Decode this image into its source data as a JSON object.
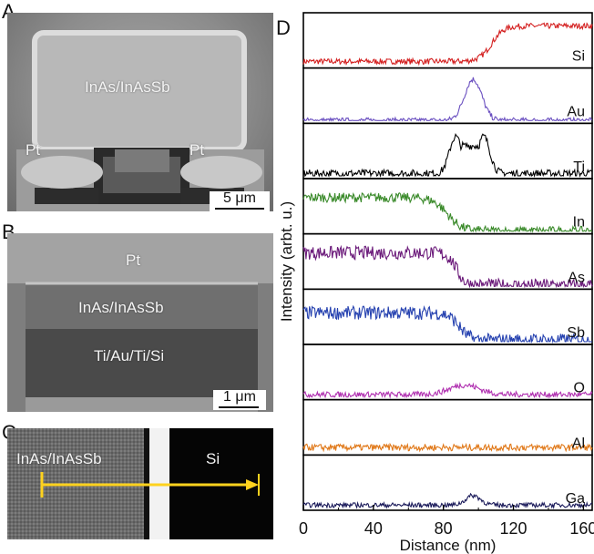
{
  "panels": {
    "a": {
      "letter": "A",
      "labels": {
        "top": "InAs/InAsSb",
        "pt_left": "Pt",
        "pt_right": "Pt"
      },
      "scalebar": "5 μm"
    },
    "b": {
      "letter": "B",
      "labels": {
        "top": "Pt",
        "middle": "InAs/InAsSb",
        "bottom": "Ti/Au/Ti/Si"
      },
      "scalebar": "1 μm"
    },
    "c": {
      "letter": "C",
      "labels": {
        "left": "InAs/InAsSb",
        "right": "Si"
      }
    },
    "d": {
      "letter": "D"
    }
  },
  "chart_data": {
    "type": "line",
    "xlabel": "Distance (nm)",
    "ylabel": "Intensity (arbt. u.)",
    "xlim": [
      0,
      165
    ],
    "xticks": [
      0,
      40,
      80,
      120,
      160
    ],
    "grid": false,
    "series": [
      {
        "name": "Si",
        "color": "#d42020",
        "shape": "step_up",
        "params": [
          97,
          118,
          0.08,
          0.82
        ],
        "noise": 0.06
      },
      {
        "name": "Au",
        "color": "#6a4fc0",
        "shape": "peak",
        "params": [
          97,
          7,
          0.0,
          0.86
        ],
        "noise": 0.06
      },
      {
        "name": "Ti",
        "color": "#000000",
        "shape": "double_peak",
        "params": [
          87,
          103,
          5,
          0.05,
          0.82
        ],
        "noise": 0.08
      },
      {
        "name": "In",
        "color": "#3a8a2a",
        "shape": "step_down",
        "params": [
          70,
          95,
          0.7,
          0.0
        ],
        "noise": 0.1
      },
      {
        "name": "As",
        "color": "#6b1a7a",
        "shape": "step_down",
        "params": [
          80,
          95,
          0.7,
          0.02
        ],
        "noise": 0.14
      },
      {
        "name": "Sb",
        "color": "#2642b0",
        "shape": "step_down",
        "params": [
          80,
          98,
          0.6,
          0.03
        ],
        "noise": 0.14
      },
      {
        "name": "O",
        "color": "#b030b0",
        "shape": "bump",
        "params": [
          92,
          12,
          0.05,
          0.2
        ],
        "noise": 0.06
      },
      {
        "name": "Al",
        "color": "#e07818",
        "shape": "flat",
        "params": [
          0.1
        ],
        "noise": 0.07
      },
      {
        "name": "Ga",
        "color": "#1a1a5a",
        "shape": "bump",
        "params": [
          97,
          6,
          0.05,
          0.2
        ],
        "noise": 0.05
      }
    ]
  },
  "annotations": {
    "arrow_color": "#ffd21e"
  }
}
